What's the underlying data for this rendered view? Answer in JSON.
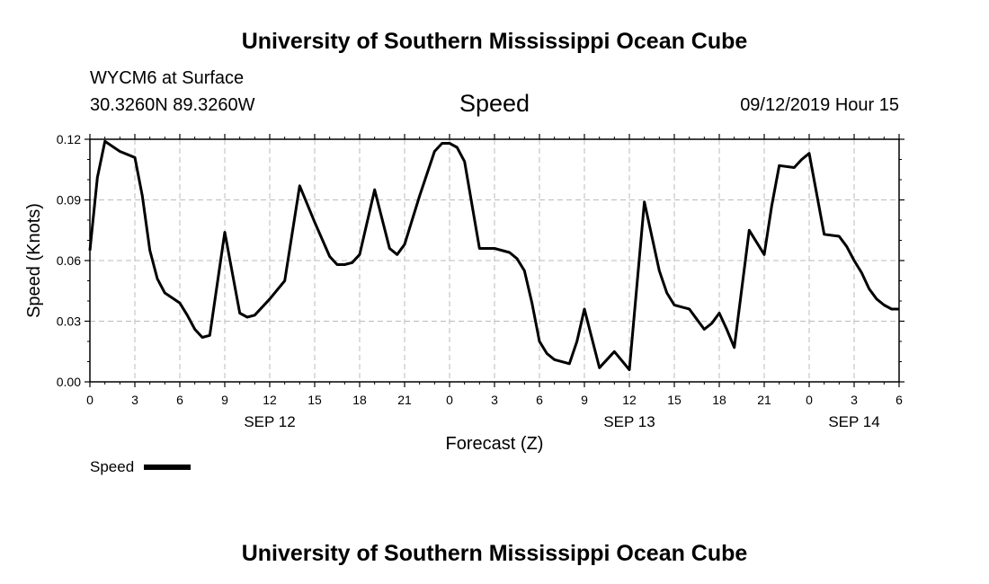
{
  "header": {
    "title": "University of Southern Mississippi Ocean Cube",
    "station": "WYCM6 at Surface",
    "coords": "30.3260N 89.3260W",
    "variable": "Speed",
    "datetime": "09/12/2019 Hour 15"
  },
  "footer": {
    "title": "University of Southern Mississippi Ocean Cube"
  },
  "chart_data": {
    "type": "line",
    "title": "Speed",
    "xlabel": "Forecast (Z)",
    "ylabel": "Speed (Knots)",
    "ylim": [
      0,
      0.12
    ],
    "yticks": [
      "0.00",
      "0.03",
      "0.06",
      "0.09",
      "0.12"
    ],
    "xlim": [
      0,
      54
    ],
    "xtick_hours": [
      0,
      3,
      6,
      9,
      12,
      15,
      18,
      21,
      24,
      27,
      30,
      33,
      36,
      39,
      42,
      45,
      48,
      51,
      54
    ],
    "xtick_labels": [
      "0",
      "3",
      "6",
      "9",
      "12",
      "15",
      "18",
      "21",
      "0",
      "3",
      "6",
      "9",
      "12",
      "15",
      "18",
      "21",
      "0",
      "3",
      "6"
    ],
    "date_labels": [
      {
        "hour": 12,
        "label": "SEP 12"
      },
      {
        "hour": 36,
        "label": "SEP 13"
      },
      {
        "hour": 51,
        "label": "SEP 14"
      }
    ],
    "grid": true,
    "legend": {
      "placement": "bottom-left",
      "label": "Speed"
    },
    "series": [
      {
        "name": "Speed",
        "color": "#000000",
        "x": [
          0,
          0.5,
          1,
          2,
          3,
          3.5,
          4,
          4.5,
          5,
          6,
          6.5,
          7,
          7.5,
          8,
          9,
          10,
          10.5,
          11,
          12,
          13,
          14,
          15,
          16,
          16.5,
          17,
          17.5,
          18,
          19,
          20,
          20.5,
          21,
          22,
          23,
          23.5,
          24,
          24.5,
          25,
          26,
          27,
          28,
          28.5,
          29,
          29.5,
          30,
          30.5,
          31,
          32,
          32.5,
          33,
          34,
          35,
          36,
          37,
          38,
          38.5,
          39,
          40,
          40.5,
          41,
          41.5,
          42,
          42.5,
          43,
          44,
          45,
          45.5,
          46,
          47,
          47.5,
          48,
          49,
          50,
          50.5,
          51,
          51.5,
          52,
          52.5,
          53,
          53.5,
          54
        ],
        "y": [
          0.065,
          0.101,
          0.119,
          0.114,
          0.111,
          0.092,
          0.065,
          0.051,
          0.044,
          0.039,
          0.033,
          0.026,
          0.022,
          0.023,
          0.074,
          0.034,
          0.032,
          0.033,
          0.041,
          0.05,
          0.097,
          0.079,
          0.062,
          0.058,
          0.058,
          0.059,
          0.063,
          0.095,
          0.066,
          0.063,
          0.068,
          0.092,
          0.114,
          0.118,
          0.118,
          0.116,
          0.109,
          0.066,
          0.066,
          0.064,
          0.061,
          0.055,
          0.039,
          0.02,
          0.014,
          0.011,
          0.009,
          0.02,
          0.036,
          0.007,
          0.015,
          0.006,
          0.089,
          0.055,
          0.044,
          0.038,
          0.036,
          0.031,
          0.026,
          0.029,
          0.034,
          0.026,
          0.017,
          0.075,
          0.063,
          0.087,
          0.107,
          0.106,
          0.11,
          0.113,
          0.073,
          0.072,
          0.067,
          0.06,
          0.054,
          0.046,
          0.041,
          0.038,
          0.036,
          0.036
        ]
      }
    ]
  }
}
